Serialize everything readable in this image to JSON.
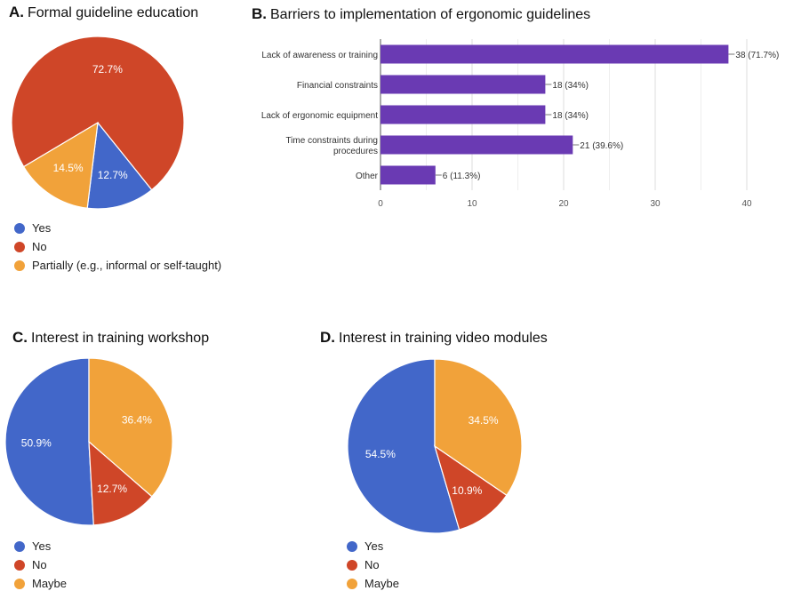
{
  "colors": {
    "blue": "#4267c9",
    "red": "#cf4628",
    "orange": "#f1a23a",
    "purple": "#6a3ab3",
    "grid": "#e2e2e2",
    "axis": "#888888"
  },
  "chart_data": [
    {
      "id": "A",
      "type": "pie",
      "panel_letter": "A.",
      "title": "Formal guideline education",
      "slices": [
        {
          "name": "Yes",
          "value": 12.7,
          "label": "12.7%",
          "color": "#4267c9"
        },
        {
          "name": "No",
          "value": 72.7,
          "label": "72.7%",
          "color": "#cf4628"
        },
        {
          "name": "Partially (e.g., informal or self-taught)",
          "value": 14.5,
          "label": "14.5%",
          "color": "#f1a23a"
        }
      ],
      "legend": [
        "Yes",
        "No",
        "Partially (e.g., informal or self-taught)"
      ],
      "legend_position": "bottom"
    },
    {
      "id": "B",
      "type": "bar",
      "orientation": "horizontal",
      "panel_letter": "B.",
      "title": "Barriers to implementation of ergonomic guidelines",
      "categories": [
        "Lack of awareness or training",
        "Financial constraints",
        "Lack of ergonomic equipment",
        "Time constraints during procedures",
        "Other"
      ],
      "category_lines": [
        [
          "Lack of awareness or training"
        ],
        [
          "Financial constraints"
        ],
        [
          "Lack of ergonomic equipment"
        ],
        [
          "Time constraints during",
          "procedures"
        ],
        [
          "Other"
        ]
      ],
      "values": [
        38,
        18,
        18,
        21,
        6
      ],
      "data_labels": [
        "38 (71.7%)",
        "18 (34%)",
        "18 (34%)",
        "21 (39.6%)",
        "6 (11.3%)"
      ],
      "xlim": [
        0,
        40
      ],
      "xticks": [
        0,
        10,
        20,
        30,
        40
      ],
      "grid": true,
      "color": "#6a3ab3"
    },
    {
      "id": "C",
      "type": "pie",
      "panel_letter": "C.",
      "title": "Interest in training workshop",
      "slices": [
        {
          "name": "Yes",
          "value": 50.9,
          "label": "50.9%",
          "color": "#4267c9"
        },
        {
          "name": "No",
          "value": 12.7,
          "label": "12.7%",
          "color": "#cf4628"
        },
        {
          "name": "Maybe",
          "value": 36.4,
          "label": "36.4%",
          "color": "#f1a23a"
        }
      ],
      "legend": [
        "Yes",
        "No",
        "Maybe"
      ],
      "legend_position": "bottom"
    },
    {
      "id": "D",
      "type": "pie",
      "panel_letter": "D.",
      "title": "Interest in training video modules",
      "slices": [
        {
          "name": "Yes",
          "value": 54.5,
          "label": "54.5%",
          "color": "#4267c9"
        },
        {
          "name": "No",
          "value": 10.9,
          "label": "10.9%",
          "color": "#cf4628"
        },
        {
          "name": "Maybe",
          "value": 34.5,
          "label": "34.5%",
          "color": "#f1a23a"
        }
      ],
      "legend": [
        "Yes",
        "No",
        "Maybe"
      ],
      "legend_position": "bottom"
    }
  ]
}
